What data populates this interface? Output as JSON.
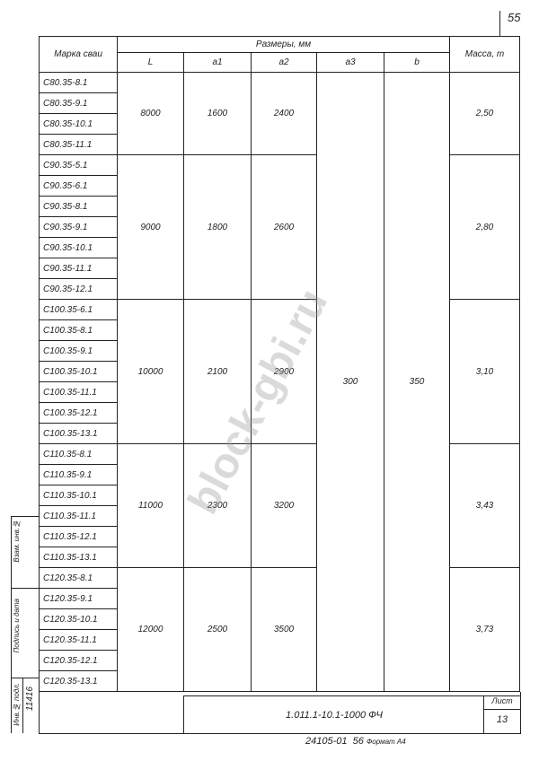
{
  "page_number": "55",
  "table": {
    "headers": {
      "mark": "Марка сваи",
      "dimensions": "Размеры, мм",
      "L": "L",
      "a1": "a1",
      "a2": "a2",
      "a3": "a3",
      "b": "b",
      "mass": "Масса, т"
    },
    "shared": {
      "a3": "300",
      "b": "350"
    },
    "groups": [
      {
        "marks": [
          "С80.35-8.1",
          "С80.35-9.1",
          "С80.35-10.1",
          "С80.35-11.1"
        ],
        "L": "8000",
        "a1": "1600",
        "a2": "2400",
        "mass": "2,50"
      },
      {
        "marks": [
          "С90.35-5.1",
          "С90.35-6.1",
          "С90.35-8.1",
          "С90.35-9.1",
          "С90.35-10.1",
          "С90.35-11.1",
          "С90.35-12.1"
        ],
        "L": "9000",
        "a1": "1800",
        "a2": "2600",
        "mass": "2,80"
      },
      {
        "marks": [
          "С100.35-6.1",
          "С100.35-8.1",
          "С100.35-9.1",
          "С100.35-10.1",
          "С100.35-11.1",
          "С100.35-12.1",
          "С100.35-13.1"
        ],
        "L": "10000",
        "a1": "2100",
        "a2": "2900",
        "mass": "3,10"
      },
      {
        "marks": [
          "С110.35-8.1",
          "С110.35-9.1",
          "С110.35-10.1",
          "С110.35-11.1",
          "С110.35-12.1",
          "С110.35-13.1"
        ],
        "L": "11000",
        "a1": "2300",
        "a2": "3200",
        "mass": "3,43"
      },
      {
        "marks": [
          "С120.35-8.1",
          "С120.35-9.1",
          "С120.35-10.1",
          "С120.35-11.1",
          "С120.35-12.1",
          "С120.35-13.1"
        ],
        "L": "12000",
        "a1": "2500",
        "a2": "3500",
        "mass": "3,73"
      }
    ]
  },
  "title_block": {
    "designation": "1.011.1-10.1-1000 ФЧ",
    "sheet_label": "Лист",
    "sheet_number": "13"
  },
  "footer": {
    "code": "24105-01",
    "number": "56",
    "format": "Формат А4"
  },
  "stamp": {
    "inv_original": "Инв.№ подл.",
    "signature_date": "Подпись и дата",
    "replaced_inv": "Взам. инв.№",
    "inv_number": "11416"
  },
  "watermark": "block-gbi.ru"
}
